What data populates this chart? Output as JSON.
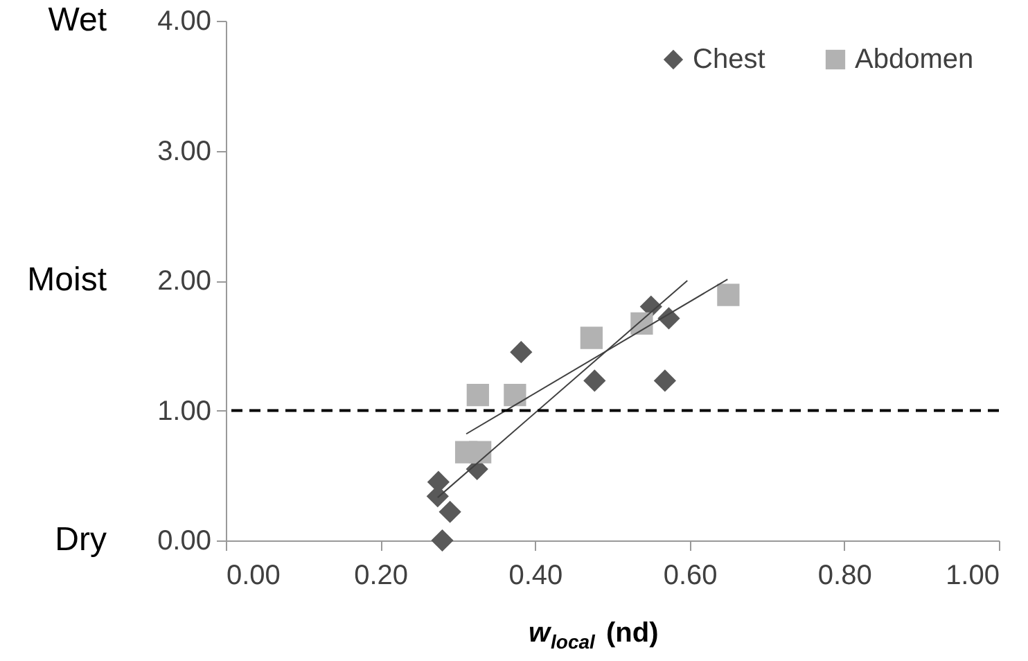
{
  "chart_data": {
    "type": "scatter",
    "xlabel": "w$_{local}$ (nd)",
    "series": [
      {
        "name": "Chest",
        "color": "#595959",
        "marker": "diamond",
        "x": [
          0.275,
          0.274,
          0.29,
          0.28,
          0.325,
          0.382,
          0.477,
          0.55,
          0.573,
          0.568
        ],
        "values": [
          0.45,
          0.34,
          0.22,
          0.0,
          0.55,
          1.45,
          1.23,
          1.8,
          1.71,
          1.23
        ]
      },
      {
        "name": "Abdomen",
        "color": "#b2b2b2",
        "marker": "square",
        "x": [
          0.311,
          0.329,
          0.326,
          0.374,
          0.473,
          0.538,
          0.65
        ],
        "values": [
          0.68,
          0.68,
          1.12,
          1.12,
          1.56,
          1.67,
          1.89
        ]
      },
      {
        "type": "line",
        "color": "#404040",
        "x": [
          0.274,
          0.597
        ],
        "values": [
          0.33,
          2.0
        ]
      },
      {
        "type": "line",
        "color": "#404040",
        "x": [
          0.311,
          0.649
        ],
        "values": [
          0.82,
          2.01
        ]
      }
    ],
    "xlim": [
      0,
      1
    ],
    "xticks": [
      {
        "value": 0,
        "label": "0.00"
      },
      {
        "value": 0.2,
        "label": "0.20"
      },
      {
        "value": 0.4,
        "label": "0.40"
      },
      {
        "value": 0.6,
        "label": "0.60"
      },
      {
        "value": 0.8,
        "label": "0.80"
      },
      {
        "value": 1,
        "label": "1.00"
      }
    ],
    "ylim": [
      0,
      4
    ],
    "yticks": [
      {
        "value": 0,
        "label": "0.00"
      },
      {
        "value": 1,
        "label": "1.00"
      },
      {
        "value": 2,
        "label": "2.00"
      },
      {
        "value": 3,
        "label": "3.00"
      },
      {
        "value": 4,
        "label": "4.00"
      }
    ],
    "ref_lines": [
      {
        "axis": "y",
        "value": 1,
        "color": "#000000",
        "line_style": "dashed"
      }
    ],
    "annotations": [
      "Wet",
      "Moist",
      "Dry"
    ],
    "legend": "top right",
    "grid": false
  }
}
